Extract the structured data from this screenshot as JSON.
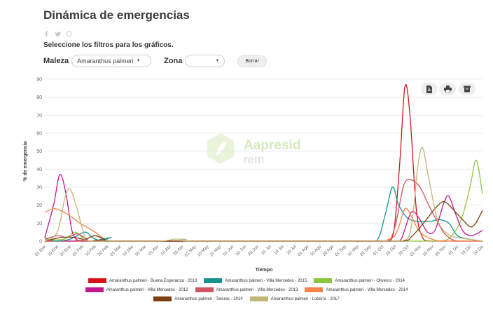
{
  "page": {
    "title": "Dinámica de emergencias",
    "subtitle": "Seleccione los filtros para los gráficos.",
    "icons": [
      "facebook-icon",
      "twitter-icon",
      "whatsapp-icon"
    ],
    "filters": {
      "maleza_label": "Maleza",
      "maleza_value": "Amaranthus palmeri",
      "zona_label": "Zona",
      "zona_value": "",
      "clear_label": "Borrar"
    },
    "toolbar_icons": [
      "pdf-icon",
      "print-icon",
      "archive-icon"
    ],
    "watermark": {
      "name": "Aapresid",
      "sub": "rem"
    }
  },
  "chart_data": {
    "type": "line",
    "title": "",
    "xlabel": "Tiempo",
    "ylabel": "% de emergencia",
    "ylim": [
      0,
      90
    ],
    "yticks": [
      0,
      10,
      20,
      30,
      40,
      50,
      60,
      70,
      80,
      90
    ],
    "grid": true,
    "categories": [
      "01 Ene",
      "10 Ene",
      "20 Ene",
      "01 Feb",
      "10 Feb",
      "20 Feb",
      "01 Mar",
      "10 Mar",
      "20 Mar",
      "01 Abr",
      "10 Abr",
      "20 Abr",
      "01 May",
      "10 May",
      "20 May",
      "01 Jun",
      "10 Jun",
      "20 Jun",
      "01 Jul",
      "10 Jul",
      "20 Jul",
      "01 Ago",
      "10 Ago",
      "20 Ago",
      "01 Sep",
      "10 Sep",
      "20 Sep",
      "01 Oct",
      "10 Oct",
      "20 Oct",
      "01 Nov",
      "10 Nov",
      "20 Nov",
      "01 Dic",
      "10 Dic",
      "20 Dic"
    ],
    "legend_rows": [
      [
        0,
        1,
        2
      ],
      [
        3,
        4,
        5
      ],
      [
        6,
        7
      ]
    ],
    "series": [
      {
        "name": "Amaranthus palmeri - Buena Esperanza - 2013",
        "color": "#d6141b",
        "points": [
          [
            0,
            0
          ],
          [
            5,
            0
          ],
          [
            25,
            0
          ],
          [
            27.3,
            0
          ],
          [
            27.9,
            5
          ],
          [
            28.4,
            45
          ],
          [
            28.8,
            86
          ],
          [
            29.2,
            70
          ],
          [
            29.7,
            18
          ],
          [
            30.2,
            2
          ],
          [
            30.8,
            0
          ],
          [
            33,
            0
          ],
          [
            35,
            0
          ]
        ]
      },
      {
        "name": "Amaranthus palmeri - Villa Mercedes - 2015",
        "color": "#16938f",
        "points": [
          [
            0,
            2
          ],
          [
            0.8,
            0
          ],
          [
            2,
            1
          ],
          [
            3.2,
            5
          ],
          [
            3.8,
            2
          ],
          [
            4.6,
            0
          ],
          [
            5.3,
            2
          ],
          [
            6,
            0
          ],
          [
            25,
            0
          ],
          [
            26.5,
            0
          ],
          [
            27.2,
            14
          ],
          [
            27.8,
            30
          ],
          [
            28.3,
            20
          ],
          [
            29.2,
            12
          ],
          [
            30.8,
            11
          ],
          [
            31.5,
            12
          ],
          [
            32.3,
            10
          ],
          [
            33,
            3
          ],
          [
            34,
            1
          ],
          [
            35,
            0
          ]
        ]
      },
      {
        "name": "Amaranthus palmeri - Oliveros - 2014",
        "color": "#8cc63f",
        "points": [
          [
            0,
            1
          ],
          [
            1.5,
            1
          ],
          [
            2.4,
            5
          ],
          [
            3.2,
            1
          ],
          [
            4.3,
            0
          ],
          [
            25,
            0
          ],
          [
            30,
            0
          ],
          [
            31.5,
            0
          ],
          [
            32.4,
            2
          ],
          [
            33.3,
            12
          ],
          [
            34,
            30
          ],
          [
            34.5,
            45
          ],
          [
            35,
            26
          ]
        ]
      },
      {
        "name": "Amaranthus palmeri - Villa Mercedes - 2012",
        "color": "#c2188f",
        "points": [
          [
            0,
            2
          ],
          [
            0.7,
            20
          ],
          [
            1.2,
            37
          ],
          [
            1.7,
            26
          ],
          [
            2.2,
            5
          ],
          [
            2.8,
            0
          ],
          [
            3.5,
            0
          ],
          [
            25,
            0
          ],
          [
            28,
            0
          ],
          [
            28.5,
            1
          ],
          [
            29.3,
            16
          ],
          [
            29.9,
            13
          ],
          [
            30.6,
            5
          ],
          [
            31.2,
            6
          ],
          [
            31.9,
            21
          ],
          [
            32.3,
            25
          ],
          [
            32.8,
            16
          ],
          [
            33.4,
            6
          ],
          [
            34,
            3
          ],
          [
            34.5,
            4
          ],
          [
            35,
            6
          ]
        ]
      },
      {
        "name": "Amaranthus palmeri - Villa Mercedes - 2013",
        "color": "#cf5661",
        "points": [
          [
            0,
            1
          ],
          [
            1,
            3
          ],
          [
            1.8,
            2
          ],
          [
            2.6,
            4
          ],
          [
            3.4,
            1
          ],
          [
            4.2,
            0
          ],
          [
            25,
            0
          ],
          [
            27.3,
            0
          ],
          [
            28,
            8
          ],
          [
            28.7,
            31
          ],
          [
            29.3,
            34
          ],
          [
            30,
            30
          ],
          [
            30.7,
            20
          ],
          [
            31.3,
            12
          ],
          [
            32,
            4
          ],
          [
            33,
            0
          ],
          [
            35,
            0
          ]
        ]
      },
      {
        "name": "Amaranthus palmeri - Villa Mercedes - 2014",
        "color": "#f5834b",
        "points": [
          [
            0,
            16
          ],
          [
            0.8,
            18
          ],
          [
            1.8,
            15
          ],
          [
            2.8,
            10
          ],
          [
            3.8,
            6
          ],
          [
            4.8,
            1
          ],
          [
            5.3,
            0
          ],
          [
            25,
            0
          ],
          [
            27.5,
            1
          ],
          [
            28.2,
            6
          ],
          [
            28.8,
            18
          ],
          [
            29.3,
            14
          ],
          [
            30,
            5
          ],
          [
            31,
            1
          ],
          [
            32,
            0
          ],
          [
            35,
            0
          ]
        ]
      },
      {
        "name": "Amaranthus palmeri - Totoras - 2014",
        "color": "#7b3f12",
        "points": [
          [
            0,
            0
          ],
          [
            1.3,
            2
          ],
          [
            2.4,
            2
          ],
          [
            3.2,
            1
          ],
          [
            4,
            3
          ],
          [
            4.8,
            1
          ],
          [
            5.5,
            0
          ],
          [
            25,
            0
          ],
          [
            28.6,
            0
          ],
          [
            29.4,
            3
          ],
          [
            30.4,
            11
          ],
          [
            31.2,
            18
          ],
          [
            31.9,
            22
          ],
          [
            32.6,
            18
          ],
          [
            33.4,
            12
          ],
          [
            34.2,
            8
          ],
          [
            35,
            17
          ]
        ]
      },
      {
        "name": "Amaranthus palmeri - Lobería - 2017",
        "color": "#c2b57a",
        "points": [
          [
            0,
            0
          ],
          [
            1,
            5
          ],
          [
            1.6,
            24
          ],
          [
            2,
            29
          ],
          [
            2.5,
            20
          ],
          [
            3.1,
            5
          ],
          [
            3.7,
            0
          ],
          [
            9,
            0
          ],
          [
            10.3,
            1
          ],
          [
            11.3,
            1
          ],
          [
            12,
            0
          ],
          [
            25,
            0
          ],
          [
            28.5,
            0
          ],
          [
            29.3,
            8
          ],
          [
            29.8,
            40
          ],
          [
            30.2,
            52
          ],
          [
            30.7,
            35
          ],
          [
            31.4,
            12
          ],
          [
            32.2,
            4
          ],
          [
            33,
            2
          ],
          [
            34,
            1
          ],
          [
            35,
            0
          ]
        ]
      }
    ]
  }
}
